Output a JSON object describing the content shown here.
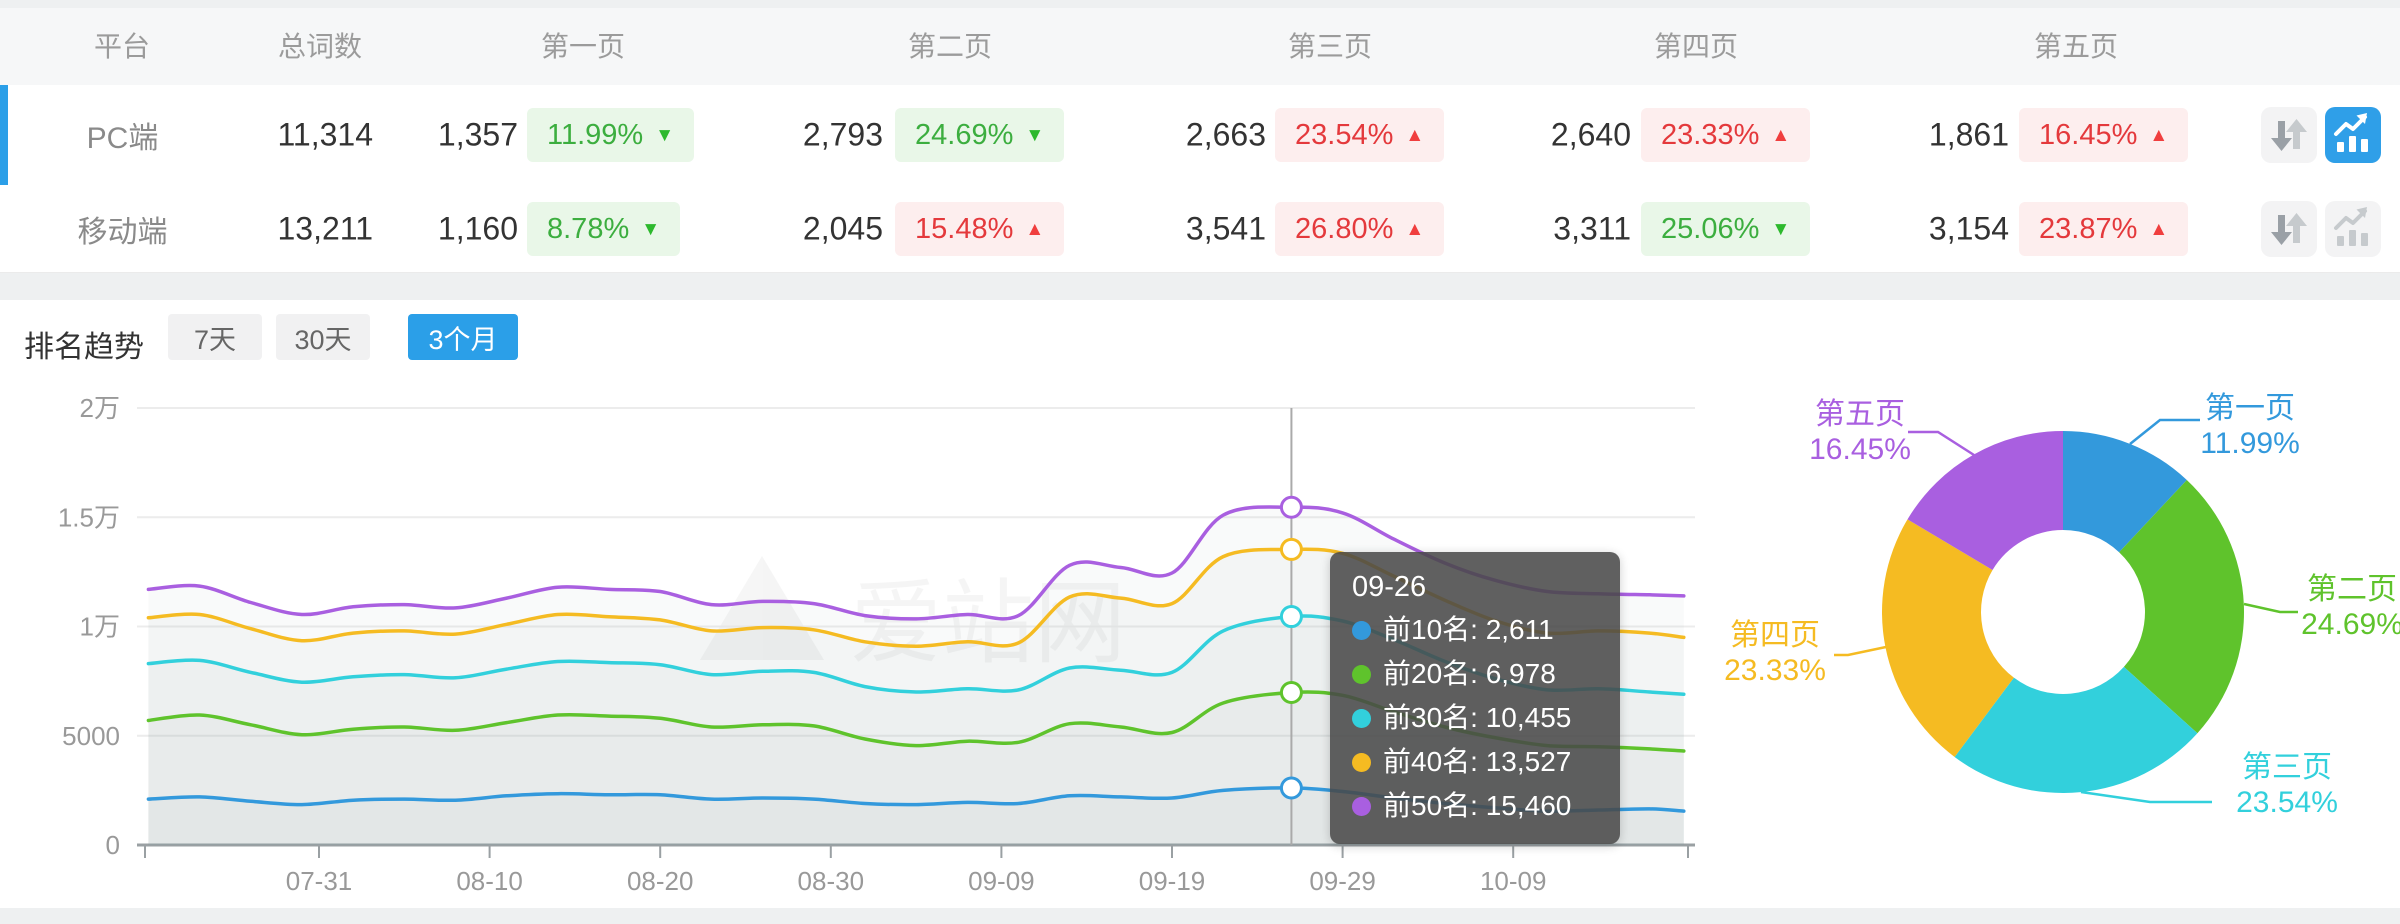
{
  "colors": {
    "accent": "#2b9fe8",
    "up_red": "#e4393c",
    "down_green": "#3cae3f",
    "series": [
      "#3399DC",
      "#5FC32C",
      "#32D0DC",
      "#F5BB22",
      "#A95FE0"
    ]
  },
  "table": {
    "headers": [
      "平台",
      "总词数",
      "第一页",
      "第二页",
      "第三页",
      "第四页",
      "第五页"
    ],
    "rows": [
      {
        "platform": "PC端",
        "total": "11,314",
        "selected": true,
        "chart_active": true,
        "pages": [
          {
            "count": "1,357",
            "pct": "11.99%",
            "dir": "down"
          },
          {
            "count": "2,793",
            "pct": "24.69%",
            "dir": "down"
          },
          {
            "count": "2,663",
            "pct": "23.54%",
            "dir": "up"
          },
          {
            "count": "2,640",
            "pct": "23.33%",
            "dir": "up"
          },
          {
            "count": "1,861",
            "pct": "16.45%",
            "dir": "up"
          }
        ]
      },
      {
        "platform": "移动端",
        "total": "13,211",
        "selected": false,
        "chart_active": false,
        "pages": [
          {
            "count": "1,160",
            "pct": "8.78%",
            "dir": "down"
          },
          {
            "count": "2,045",
            "pct": "15.48%",
            "dir": "up"
          },
          {
            "count": "3,541",
            "pct": "26.80%",
            "dir": "up"
          },
          {
            "count": "3,311",
            "pct": "25.06%",
            "dir": "down"
          },
          {
            "count": "3,154",
            "pct": "23.87%",
            "dir": "up"
          }
        ]
      }
    ]
  },
  "trend": {
    "title": "排名趋势",
    "ranges": [
      {
        "label": "7天",
        "active": false
      },
      {
        "label": "30天",
        "active": false
      },
      {
        "label": "3个月",
        "active": true
      }
    ]
  },
  "watermark": "爱站网",
  "tooltip": {
    "title": "09-26",
    "rows": [
      {
        "label": "前10名",
        "value": "2,611",
        "color": "#3399DC"
      },
      {
        "label": "前20名",
        "value": "6,978",
        "color": "#5FC32C"
      },
      {
        "label": "前30名",
        "value": "10,455",
        "color": "#32D0DC"
      },
      {
        "label": "前40名",
        "value": "13,527",
        "color": "#F5BB22"
      },
      {
        "label": "前50名",
        "value": "15,460",
        "color": "#A95FE0"
      }
    ]
  },
  "chart_data": [
    {
      "type": "line",
      "title": "排名趋势 (3个月)",
      "x": [
        "07-21",
        "07-24",
        "07-27",
        "07-30",
        "08-02",
        "08-05",
        "08-08",
        "08-11",
        "08-14",
        "08-17",
        "08-20",
        "08-23",
        "08-26",
        "08-29",
        "09-01",
        "09-04",
        "09-07",
        "09-10",
        "09-13",
        "09-16",
        "09-19",
        "09-22",
        "09-26",
        "09-29",
        "10-02",
        "10-05",
        "10-08",
        "10-11",
        "10-14",
        "10-17",
        "10-19"
      ],
      "series": [
        {
          "name": "前10名",
          "color": "#3399DC",
          "values": [
            2100,
            2200,
            2000,
            1850,
            2050,
            2100,
            2050,
            2250,
            2350,
            2300,
            2300,
            2100,
            2150,
            2100,
            1900,
            1850,
            1950,
            1900,
            2250,
            2200,
            2150,
            2500,
            2611,
            2450,
            2150,
            1900,
            1700,
            1550,
            1600,
            1650,
            1550
          ]
        },
        {
          "name": "前20名",
          "color": "#5FC32C",
          "values": [
            5700,
            5950,
            5500,
            5050,
            5300,
            5400,
            5250,
            5600,
            5950,
            5900,
            5800,
            5400,
            5500,
            5450,
            4850,
            4550,
            4750,
            4700,
            5550,
            5400,
            5150,
            6500,
            6978,
            6850,
            6100,
            5400,
            4900,
            4550,
            4500,
            4400,
            4300
          ]
        },
        {
          "name": "前30名",
          "color": "#32D0DC",
          "values": [
            8300,
            8450,
            7900,
            7450,
            7700,
            7800,
            7650,
            8050,
            8400,
            8350,
            8250,
            7800,
            7950,
            7900,
            7250,
            7000,
            7150,
            7100,
            8100,
            8000,
            7900,
            9800,
            10455,
            10250,
            9400,
            8400,
            7600,
            7100,
            7150,
            7000,
            6900
          ]
        },
        {
          "name": "前40名",
          "color": "#F5BB22",
          "values": [
            10400,
            10550,
            9900,
            9350,
            9700,
            9800,
            9650,
            10100,
            10550,
            10450,
            10300,
            9800,
            9950,
            9850,
            9300,
            9100,
            9300,
            9250,
            11350,
            11300,
            11050,
            13200,
            13527,
            13350,
            12300,
            11200,
            10250,
            9700,
            9800,
            9700,
            9500
          ]
        },
        {
          "name": "前50名",
          "color": "#A95FE0",
          "values": [
            11700,
            11850,
            11100,
            10550,
            10900,
            11000,
            10850,
            11300,
            11800,
            11700,
            11600,
            11000,
            11150,
            11050,
            10500,
            10350,
            10550,
            10500,
            12800,
            12700,
            12450,
            15100,
            15460,
            15200,
            14000,
            12900,
            12100,
            11600,
            11500,
            11450,
            11400
          ]
        }
      ],
      "ylim": [
        0,
        20000
      ],
      "yticks": [
        {
          "v": 0,
          "label": "0"
        },
        {
          "v": 5000,
          "label": "5000"
        },
        {
          "v": 10000,
          "label": "1万"
        },
        {
          "v": 15000,
          "label": "1.5万"
        },
        {
          "v": 20000,
          "label": "2万"
        }
      ],
      "xticks": [
        "07-31",
        "08-10",
        "08-20",
        "08-30",
        "09-09",
        "09-19",
        "09-29",
        "10-09"
      ],
      "highlight": {
        "date": "09-26",
        "values": [
          2611,
          6978,
          10455,
          13527,
          15460
        ]
      },
      "grid": true,
      "legend": "none"
    },
    {
      "type": "donut",
      "slices": [
        {
          "label": "第一页",
          "pct": 11.99,
          "pct_label": "11.99%",
          "color": "#3399DC"
        },
        {
          "label": "第二页",
          "pct": 24.69,
          "pct_label": "24.69%",
          "color": "#5FC32C"
        },
        {
          "label": "第三页",
          "pct": 23.54,
          "pct_label": "23.54%",
          "color": "#32D0DC"
        },
        {
          "label": "第四页",
          "pct": 23.33,
          "pct_label": "23.33%",
          "color": "#F5BB22"
        },
        {
          "label": "第五页",
          "pct": 16.45,
          "pct_label": "16.45%",
          "color": "#A95FE0"
        }
      ]
    }
  ]
}
